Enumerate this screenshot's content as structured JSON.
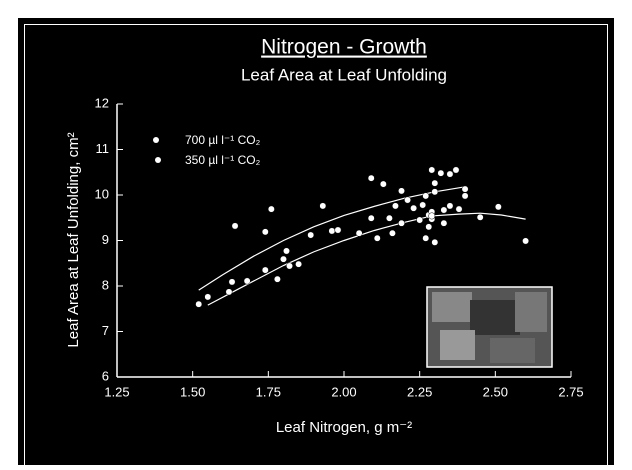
{
  "chart_data": {
    "type": "scatter",
    "title": "Nitrogen - Growth",
    "subtitle": "Leaf Area at Leaf Unfolding",
    "x_label": "Leaf Nitrogen, g m⁻²",
    "y_label": "Leaf Area at Leaf Unfolding, cm²",
    "xlim": [
      1.25,
      2.75
    ],
    "xticks": [
      {
        "value": 1.25,
        "label": "1.25"
      },
      {
        "value": 1.5,
        "label": "1.50"
      },
      {
        "value": 1.75,
        "label": "1.75"
      },
      {
        "value": 2,
        "label": "2.00"
      },
      {
        "value": 2.25,
        "label": "2.25"
      },
      {
        "value": 2.5,
        "label": "2.50"
      },
      {
        "value": 2.75,
        "label": "2.75"
      }
    ],
    "ylim": [
      6,
      12
    ],
    "yticks": [
      6,
      7,
      8,
      9,
      10,
      11,
      12
    ],
    "series": [
      {
        "name": "700 µl l⁻¹ CO₂",
        "color": "#ffffff",
        "x": [
          1.64,
          1.74,
          1.76,
          1.93,
          2.09,
          2.13,
          2.17,
          2.19,
          2.21,
          2.26,
          2.27,
          2.29,
          2.3,
          2.3,
          2.32,
          2.35,
          2.37,
          2.4,
          2.4,
          2.35,
          2.38,
          2.51
        ],
        "values": [
          9.32,
          9.19,
          9.69,
          9.76,
          10.37,
          10.24,
          9.76,
          10.09,
          9.89,
          9.78,
          9.98,
          10.55,
          10.26,
          10.07,
          10.48,
          10.46,
          10.55,
          10.13,
          9.98,
          9.76,
          9.69,
          9.74
        ]
      },
      {
        "name": "350 µl l⁻¹ CO₂",
        "color": "#ffffff",
        "x": [
          1.52,
          1.55,
          1.62,
          1.63,
          1.68,
          1.74,
          1.78,
          1.8,
          1.81,
          1.82,
          1.85,
          1.89,
          1.96,
          1.98,
          2.05,
          2.09,
          2.11,
          2.15,
          2.16,
          2.19,
          2.23,
          2.25,
          2.27,
          2.28,
          2.28,
          2.29,
          2.29,
          2.29,
          2.3,
          2.33,
          2.33,
          2.45,
          2.6
        ],
        "values": [
          7.6,
          7.76,
          7.87,
          8.09,
          8.11,
          8.35,
          8.15,
          8.59,
          8.77,
          8.44,
          8.48,
          9.12,
          9.21,
          9.23,
          9.16,
          9.49,
          9.05,
          9.49,
          9.16,
          9.38,
          9.71,
          9.45,
          9.05,
          9.56,
          9.3,
          9.47,
          9.63,
          9.54,
          8.96,
          9.67,
          9.38,
          9.51,
          8.99
        ]
      }
    ],
    "fits": [
      {
        "x": [
          1.52,
          1.6,
          1.7,
          1.8,
          1.9,
          2.0,
          2.1,
          2.2,
          2.3,
          2.4
        ],
        "values": [
          7.91,
          8.25,
          8.65,
          9.0,
          9.3,
          9.55,
          9.75,
          9.93,
          10.07,
          10.18
        ]
      },
      {
        "x": [
          1.55,
          1.65,
          1.8,
          1.9,
          2.0,
          2.1,
          2.2,
          2.29,
          2.38,
          2.45,
          2.52,
          2.6
        ],
        "values": [
          7.58,
          7.93,
          8.45,
          8.75,
          9.0,
          9.22,
          9.4,
          9.54,
          9.58,
          9.6,
          9.56,
          9.47
        ]
      }
    ]
  }
}
